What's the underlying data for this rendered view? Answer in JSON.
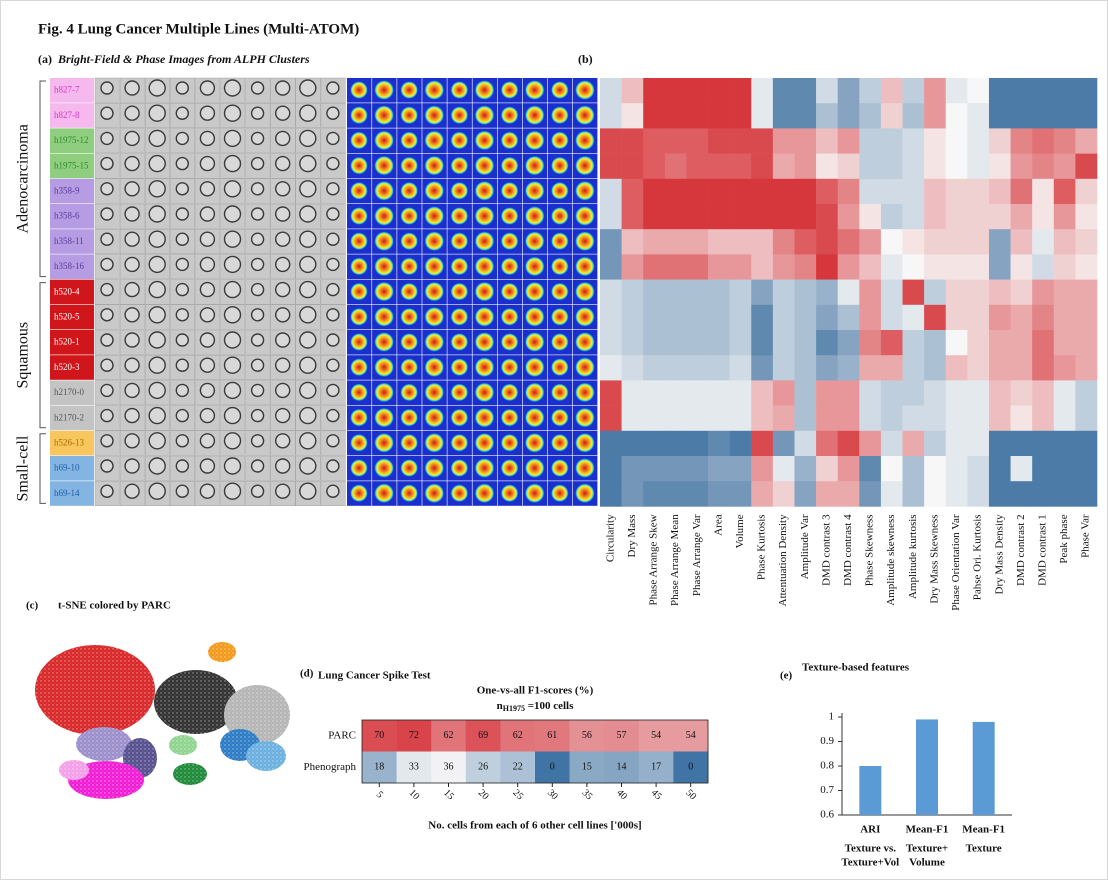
{
  "title": "Fig. 4 Lung Cancer Multiple Lines (Multi-ATOM)",
  "panel_a": {
    "label": "(a)",
    "title": "Bright-Field & Phase Images from ALPH Clusters",
    "groups": [
      {
        "name": "Adenocarcinoma",
        "rows": [
          {
            "label": "h827-7",
            "color": "#f5b9ee",
            "text_color": "#d935c0"
          },
          {
            "label": "h827-8",
            "color": "#f5b9ee",
            "text_color": "#d935c0"
          },
          {
            "label": "h1975-12",
            "color": "#8fce7e",
            "text_color": "#2e8b2e"
          },
          {
            "label": "h1975-15",
            "color": "#8fce7e",
            "text_color": "#2e8b2e"
          },
          {
            "label": "h358-9",
            "color": "#b69ce2",
            "text_color": "#5a3aa0"
          },
          {
            "label": "h358-6",
            "color": "#b69ce2",
            "text_color": "#5a3aa0"
          },
          {
            "label": "h358-11",
            "color": "#b69ce2",
            "text_color": "#5a3aa0"
          },
          {
            "label": "h358-16",
            "color": "#b69ce2",
            "text_color": "#5a3aa0"
          }
        ]
      },
      {
        "name": "Squamous",
        "rows": [
          {
            "label": "h520-4",
            "color": "#d0161b",
            "text_color": "#ffffff"
          },
          {
            "label": "h520-5",
            "color": "#d0161b",
            "text_color": "#ffffff"
          },
          {
            "label": "h520-1",
            "color": "#d0161b",
            "text_color": "#ffffff"
          },
          {
            "label": "h520-3",
            "color": "#d0161b",
            "text_color": "#ffffff"
          },
          {
            "label": "h2170-0",
            "color": "#c4c4c4",
            "text_color": "#555555"
          },
          {
            "label": "h2170-2",
            "color": "#c4c4c4",
            "text_color": "#555555"
          }
        ]
      },
      {
        "name": "Small-cell",
        "rows": [
          {
            "label": "h526-13",
            "color": "#f7c65c",
            "text_color": "#b06a00"
          },
          {
            "label": "h69-10",
            "color": "#84b4e2",
            "text_color": "#1f5fa8"
          },
          {
            "label": "h69-14",
            "color": "#84b4e2",
            "text_color": "#1f5fa8"
          }
        ]
      }
    ]
  },
  "panel_c": {
    "label": "(c)",
    "title": "t-SNE colored by PARC"
  },
  "chart_data": [
    {
      "type": "heatmap",
      "panel_label": "(b)",
      "columns": [
        "Circularity",
        "Dry Mass",
        "Phase Arrange Skew",
        "Phase Arrange Mean",
        "Phase Arrange Var",
        "Area",
        "Volume",
        "Phase Kurtosis",
        "Attentuation Density",
        "Amplitude Var",
        "DMD contrast 3",
        "DMD contrast 4",
        "Phase Skewness",
        "Amplitude skewness",
        "Amplitude kurtosis",
        "Dry Mass Skewness",
        "Phase Orientation Var",
        "Pahse Ori. Kurtosis",
        "Dry Mass Density",
        "DMD contrast 2",
        "DMD contrast 1",
        "Peak phase",
        "Phase Var"
      ],
      "colors": [
        "#3a6d9e",
        "#f7f7f7",
        "#d6373c"
      ],
      "values": [
        [
          -0.2,
          0.3,
          1,
          1,
          1,
          1,
          1,
          -0.1,
          -0.8,
          -0.8,
          -0.2,
          -0.6,
          -0.3,
          0.3,
          -0.3,
          0.5,
          -0.1,
          0,
          -0.9,
          -0.9,
          -0.9,
          -0.9,
          -0.9
        ],
        [
          -0.2,
          0.1,
          1,
          1,
          1,
          1,
          1,
          -0.1,
          -0.8,
          -0.8,
          -0.4,
          -0.6,
          -0.4,
          0.2,
          -0.4,
          0.5,
          0,
          -0.1,
          -0.9,
          -0.9,
          -0.9,
          -0.9,
          -0.9
        ],
        [
          0.9,
          0.9,
          0.8,
          0.8,
          0.8,
          0.9,
          0.9,
          0.9,
          0.5,
          0.5,
          0.3,
          0.5,
          -0.3,
          -0.3,
          -0.2,
          0.1,
          0,
          -0.1,
          0.2,
          0.6,
          0.7,
          0.6,
          0.4
        ],
        [
          0.9,
          0.9,
          0.8,
          0.7,
          0.8,
          0.8,
          0.8,
          0.9,
          0.4,
          0.5,
          0.1,
          0.2,
          -0.3,
          -0.3,
          -0.2,
          0.1,
          0,
          -0.1,
          0.1,
          0.5,
          0.6,
          0.5,
          0.9
        ],
        [
          -0.2,
          0.8,
          1,
          1,
          1,
          1,
          1,
          1,
          1,
          1,
          0.8,
          0.6,
          -0.2,
          -0.2,
          -0.2,
          0.3,
          0.2,
          0.2,
          0.3,
          0.7,
          0.1,
          0.8,
          0.2
        ],
        [
          -0.2,
          0.8,
          1,
          1,
          1,
          1,
          1,
          1,
          1,
          1,
          0.9,
          0.5,
          0.1,
          -0.3,
          -0.2,
          0.3,
          0.2,
          0.2,
          0.2,
          0.4,
          0.1,
          0.5,
          0.1
        ],
        [
          -0.7,
          0.3,
          0.4,
          0.4,
          0.4,
          0.3,
          0.3,
          0.3,
          0.6,
          0.8,
          0.9,
          0.7,
          0.5,
          0,
          0.1,
          0.2,
          0.2,
          0.2,
          -0.6,
          0.3,
          -0.1,
          0.3,
          0.2
        ],
        [
          -0.7,
          0.5,
          0.7,
          0.7,
          0.7,
          0.5,
          0.5,
          0.3,
          0.5,
          0.6,
          1,
          0.5,
          0.3,
          -0.1,
          0,
          0.1,
          0.1,
          0.1,
          -0.6,
          0.1,
          -0.2,
          0.2,
          0.1
        ],
        [
          -0.2,
          -0.3,
          -0.4,
          -0.4,
          -0.4,
          -0.4,
          -0.3,
          -0.6,
          -0.3,
          -0.4,
          -0.5,
          -0.1,
          0.5,
          -0.2,
          0.9,
          -0.3,
          0.2,
          0.2,
          0.3,
          0.2,
          0.5,
          0.4,
          0.4
        ],
        [
          -0.2,
          -0.3,
          -0.4,
          -0.4,
          -0.4,
          -0.4,
          -0.3,
          -0.8,
          -0.3,
          -0.4,
          -0.6,
          -0.4,
          0.5,
          -0.2,
          -0.1,
          0.9,
          0.2,
          0.2,
          0.5,
          0.4,
          0.6,
          0.4,
          0.4
        ],
        [
          -0.2,
          -0.3,
          -0.4,
          -0.4,
          -0.4,
          -0.4,
          -0.3,
          -0.8,
          -0.3,
          -0.4,
          -0.8,
          -0.6,
          0.6,
          0.8,
          -0.3,
          -0.4,
          0,
          0.2,
          0.4,
          0.4,
          0.7,
          0.4,
          0.4
        ],
        [
          -0.1,
          -0.2,
          -0.3,
          -0.3,
          -0.3,
          -0.3,
          -0.2,
          -0.7,
          -0.3,
          -0.4,
          -0.6,
          -0.5,
          0.4,
          0.4,
          -0.3,
          -0.4,
          0.3,
          0.2,
          0.4,
          0.4,
          0.7,
          0.5,
          0.4
        ],
        [
          0.9,
          -0.1,
          -0.1,
          -0.1,
          -0.1,
          -0.1,
          -0.1,
          0.3,
          0.5,
          -0.4,
          0.5,
          0.5,
          -0.2,
          -0.3,
          -0.3,
          -0.2,
          -0.1,
          -0.1,
          0.3,
          0.2,
          0.3,
          -0.1,
          -0.3
        ],
        [
          0.9,
          -0.1,
          -0.1,
          -0.1,
          -0.1,
          -0.1,
          -0.1,
          0.3,
          0.4,
          -0.4,
          0.5,
          0.5,
          -0.2,
          -0.3,
          -0.2,
          -0.2,
          -0.1,
          -0.1,
          0.3,
          0.1,
          0.3,
          -0.1,
          -0.3
        ],
        [
          -0.9,
          -0.9,
          -0.9,
          -0.9,
          -0.9,
          -0.8,
          -0.9,
          0.9,
          -0.7,
          -0.2,
          0.7,
          0.9,
          0.5,
          -0.2,
          0.4,
          -0.3,
          -0.1,
          -0.1,
          -0.9,
          -0.9,
          -0.9,
          -0.9,
          -0.9
        ],
        [
          -0.9,
          -0.7,
          -0.7,
          -0.7,
          -0.7,
          -0.6,
          -0.6,
          0.5,
          -0.1,
          -0.5,
          0.2,
          0.5,
          -0.8,
          0,
          -0.4,
          0,
          -0.1,
          -0.2,
          -0.9,
          -0.1,
          -0.9,
          -0.9,
          -0.9
        ],
        [
          -0.9,
          -0.7,
          -0.8,
          -0.8,
          -0.8,
          -0.7,
          -0.7,
          0.4,
          0.2,
          -0.6,
          0.4,
          0.4,
          -0.7,
          -0.1,
          -0.4,
          0,
          -0.1,
          -0.2,
          -0.9,
          -0.9,
          -0.9,
          -0.9,
          -0.9
        ]
      ]
    },
    {
      "type": "heatmap-annotated",
      "panel_label": "(d)",
      "title": "Lung Cancer Spike Test",
      "subtitle": "One-vs-all F1-scores (%)",
      "subtitle2": [
        "n",
        "H1975",
        " =100 cells"
      ],
      "x_label": "No. cells from each of 6 other cell lines ['000s]",
      "categories": [
        "5",
        "10",
        "15",
        "20",
        "25",
        "30",
        "35",
        "40",
        "45",
        "50"
      ],
      "colors": [
        "#3f74a4",
        "#f2f2f4",
        "#d9434a"
      ],
      "series": [
        {
          "name": "PARC",
          "values": [
            70,
            72,
            62,
            69,
            62,
            61,
            56,
            57,
            54,
            54
          ]
        },
        {
          "name": "Phenograph",
          "values": [
            18,
            33,
            36,
            26,
            22,
            0,
            15,
            14,
            17,
            0
          ]
        }
      ]
    },
    {
      "type": "bar",
      "panel_label": "(e)",
      "title": "Texture-based features",
      "categories": [
        "ARI",
        "Mean-F1",
        "Mean-F1"
      ],
      "category_notes": [
        [
          "Texture vs.",
          "Texture+Vol"
        ],
        [
          "Texture+",
          "Volume"
        ],
        [
          "Texture"
        ]
      ],
      "values": [
        0.8,
        0.99,
        0.98
      ],
      "color": "#5b9bd5",
      "ylim": [
        0.6,
        1
      ],
      "yticks": [
        0.6,
        0.7,
        0.8,
        0.9,
        1
      ]
    }
  ]
}
